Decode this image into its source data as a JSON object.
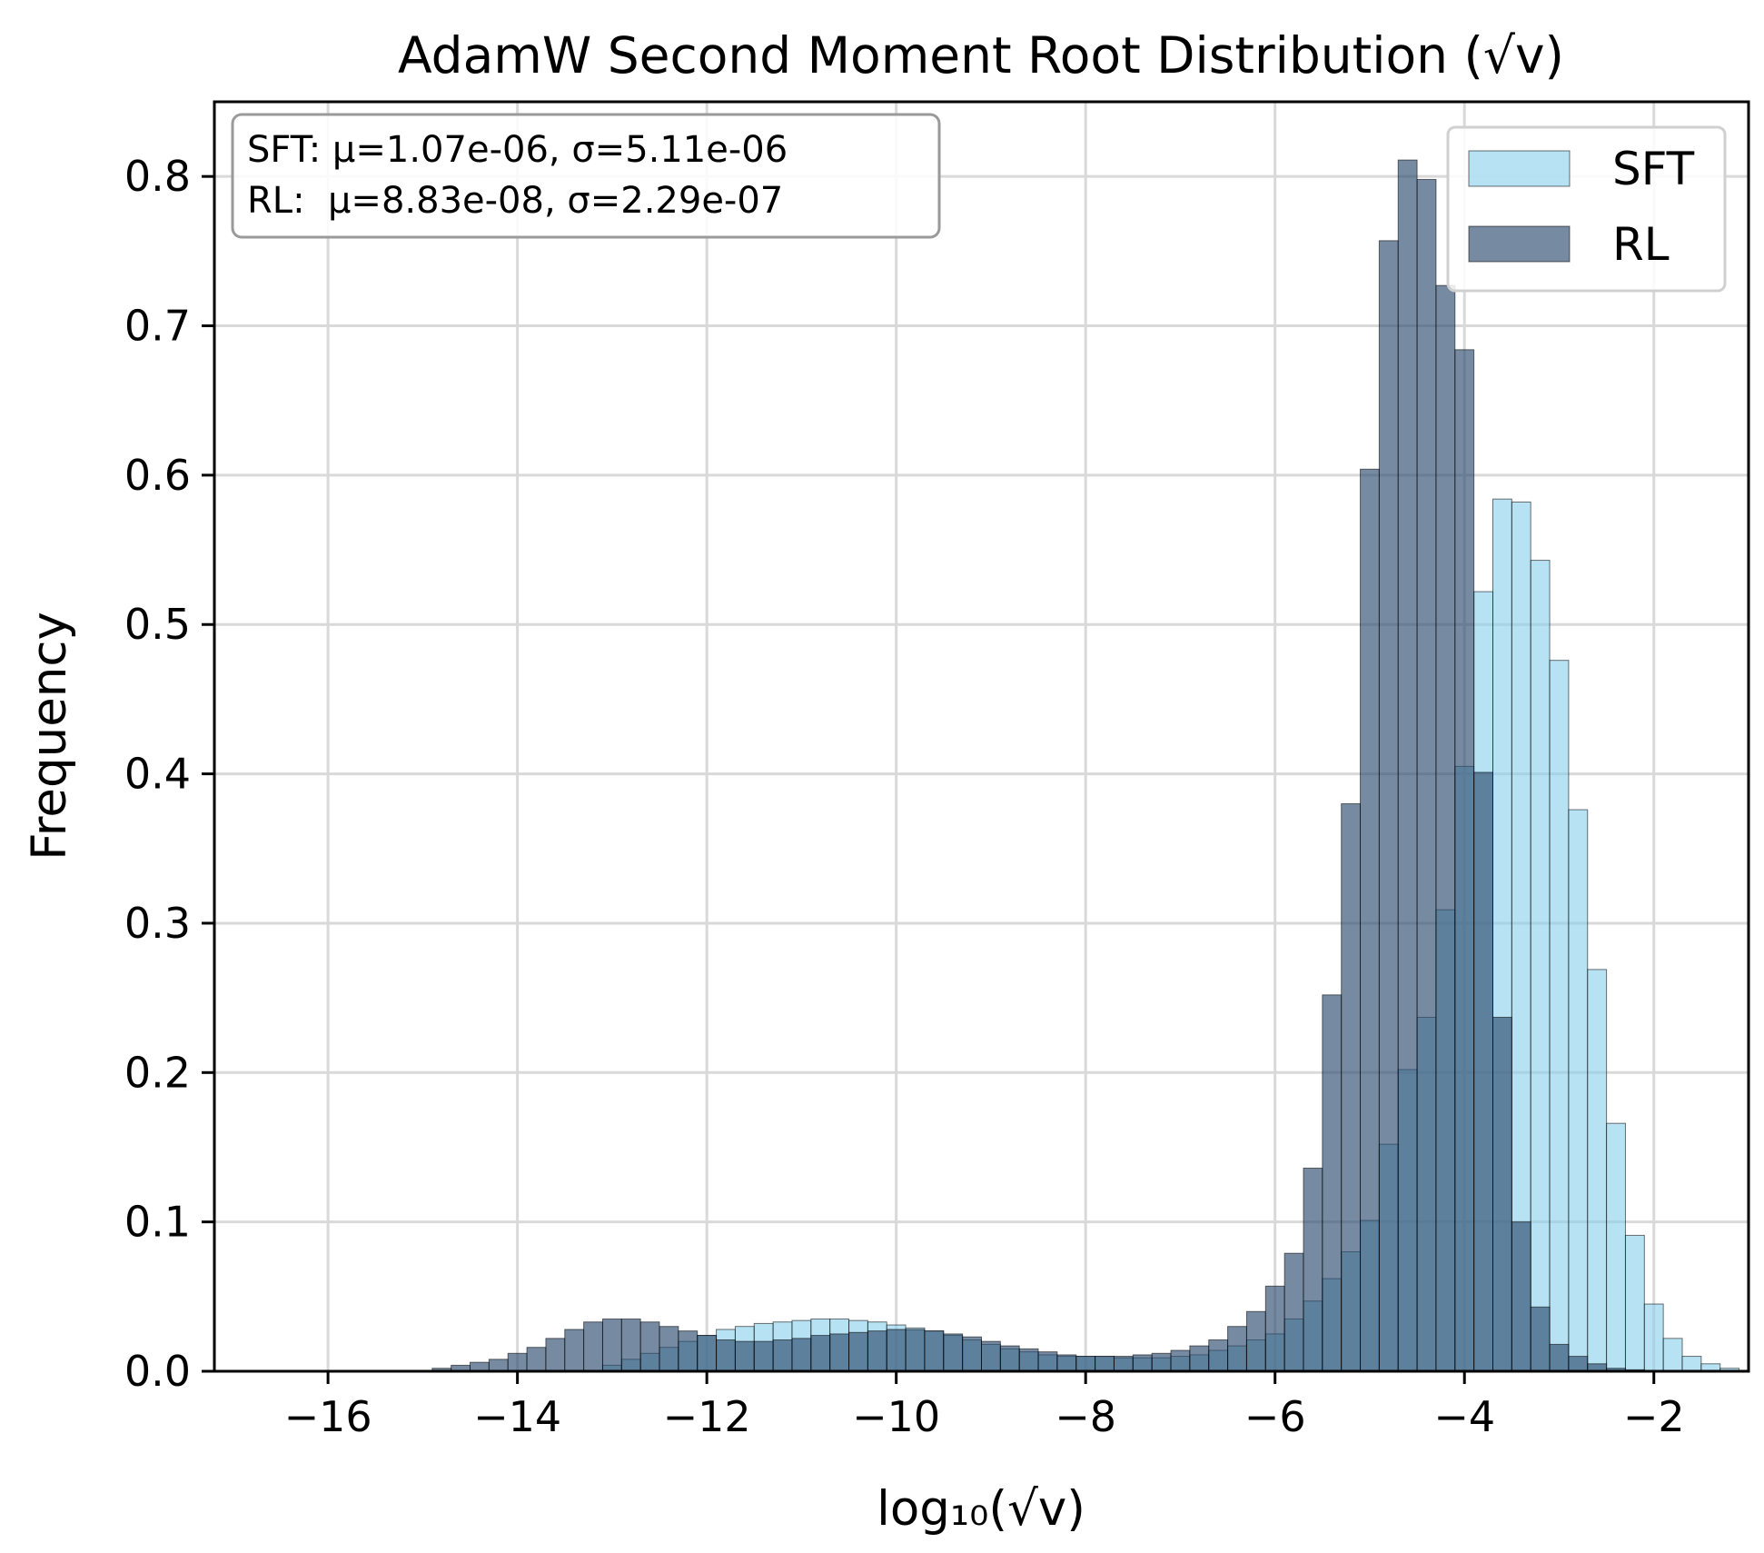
{
  "chart_data": {
    "type": "bar",
    "title": "AdamW Second Moment Root Distribution (√v)",
    "xlabel": "log₁₀(√v)",
    "ylabel": "Frequency",
    "xlim": [
      -17.2,
      -1.0
    ],
    "ylim": [
      0,
      0.85
    ],
    "x_ticks": [
      -16,
      -14,
      -12,
      -10,
      -8,
      -6,
      -4,
      -2
    ],
    "x_tick_labels": [
      "−16",
      "−14",
      "−12",
      "−10",
      "−8",
      "−6",
      "−4",
      "−2"
    ],
    "y_ticks": [
      0.0,
      0.1,
      0.2,
      0.3,
      0.4,
      0.5,
      0.6,
      0.7,
      0.8
    ],
    "y_tick_labels": [
      "0.0",
      "0.1",
      "0.2",
      "0.3",
      "0.4",
      "0.5",
      "0.6",
      "0.7",
      "0.8"
    ],
    "grid": true,
    "legend": {
      "placement": "top-right",
      "entries": [
        "SFT",
        "RL"
      ]
    },
    "annotation": {
      "placement": "top-left",
      "lines": [
        "SFT: μ=1.07e-06, σ=5.11e-06",
        "RL:  μ=8.83e-08, σ=2.29e-07"
      ]
    },
    "series": [
      {
        "name": "SFT",
        "color": "#87ceeb",
        "opacity": 0.6,
        "bin_start": -13.3,
        "bin_width": 0.2,
        "values": [
          0.0,
          0.004,
          0.008,
          0.012,
          0.016,
          0.02,
          0.024,
          0.028,
          0.03,
          0.032,
          0.033,
          0.034,
          0.035,
          0.035,
          0.034,
          0.033,
          0.031,
          0.029,
          0.027,
          0.024,
          0.021,
          0.018,
          0.015,
          0.013,
          0.011,
          0.01,
          0.01,
          0.01,
          0.009,
          0.009,
          0.009,
          0.01,
          0.011,
          0.014,
          0.017,
          0.021,
          0.025,
          0.035,
          0.047,
          0.062,
          0.08,
          0.101,
          0.152,
          0.202,
          0.237,
          0.309,
          0.405,
          0.522,
          0.584,
          0.582,
          0.543,
          0.476,
          0.376,
          0.269,
          0.166,
          0.091,
          0.045,
          0.022,
          0.01,
          0.005,
          0.002
        ]
      },
      {
        "name": "RL",
        "color": "#2d4c6e",
        "opacity": 0.65,
        "bin_start": -15.1,
        "bin_width": 0.2,
        "values": [
          0.0,
          0.002,
          0.004,
          0.006,
          0.008,
          0.012,
          0.016,
          0.022,
          0.028,
          0.033,
          0.035,
          0.035,
          0.033,
          0.03,
          0.027,
          0.024,
          0.021,
          0.02,
          0.02,
          0.021,
          0.022,
          0.024,
          0.025,
          0.026,
          0.027,
          0.028,
          0.028,
          0.027,
          0.025,
          0.023,
          0.02,
          0.017,
          0.015,
          0.013,
          0.011,
          0.01,
          0.01,
          0.01,
          0.011,
          0.012,
          0.014,
          0.017,
          0.021,
          0.03,
          0.04,
          0.057,
          0.079,
          0.136,
          0.252,
          0.38,
          0.604,
          0.757,
          0.811,
          0.798,
          0.727,
          0.684,
          0.401,
          0.237,
          0.1,
          0.043,
          0.018,
          0.01,
          0.005,
          0.002,
          0.001
        ]
      }
    ]
  }
}
